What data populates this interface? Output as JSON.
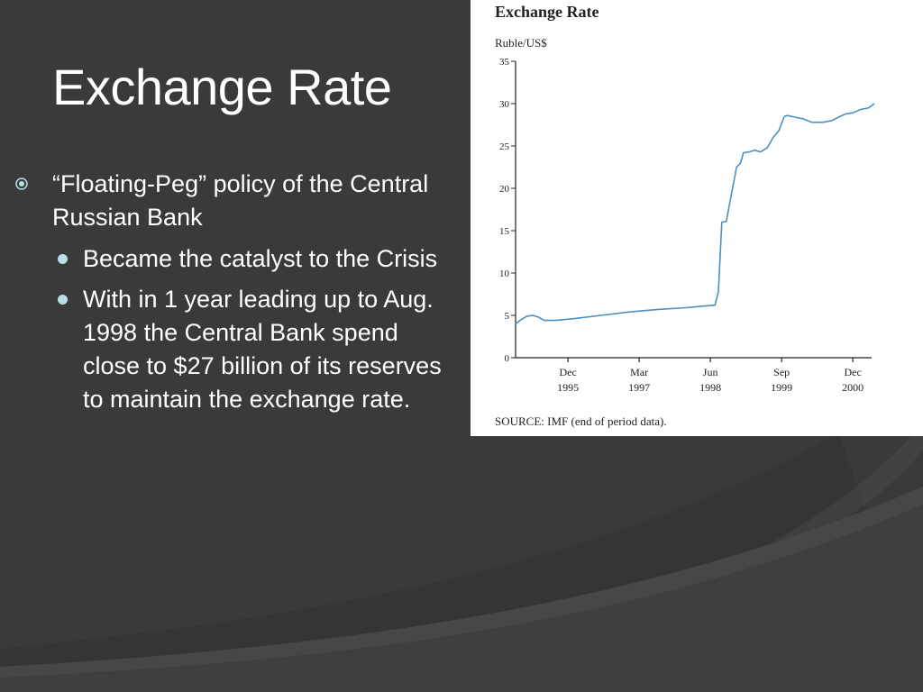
{
  "slide": {
    "title": "Exchange Rate",
    "bullets": [
      {
        "text": "“Floating-Peg” policy of the Central Russian Bank",
        "sub": [
          "Became the catalyst to the Crisis",
          "With in 1 year leading up to Aug. 1998 the Central Bank spend close to $27 billion of its reserves to maintain the exchange rate."
        ]
      }
    ]
  },
  "colors": {
    "background": "#3a3a3a",
    "accent": "#b6dfe6",
    "line": "#4a90c4"
  },
  "chart_data": {
    "type": "line",
    "title": "Exchange Rate",
    "ylabel": "Ruble/US$",
    "source": "SOURCE: IMF (end of period data).",
    "ylim": [
      0,
      35
    ],
    "yticks": [
      0,
      5,
      10,
      15,
      20,
      25,
      30,
      35
    ],
    "xlim": [
      1995.0,
      2001.25
    ],
    "xticks": [
      {
        "month": "Dec",
        "year": "1995",
        "x": 1995.92
      },
      {
        "month": "Mar",
        "year": "1997",
        "x": 1997.17
      },
      {
        "month": "Jun",
        "year": "1998",
        "x": 1998.42
      },
      {
        "month": "Sep",
        "year": "1999",
        "x": 1999.67
      },
      {
        "month": "Dec",
        "year": "2000",
        "x": 2000.92
      }
    ],
    "grid": false,
    "series": [
      {
        "points": [
          [
            1995.0,
            4.0
          ],
          [
            1995.1,
            4.5
          ],
          [
            1995.2,
            4.9
          ],
          [
            1995.3,
            5.0
          ],
          [
            1995.4,
            4.8
          ],
          [
            1995.5,
            4.4
          ],
          [
            1995.7,
            4.4
          ],
          [
            1996.0,
            4.6
          ],
          [
            1996.5,
            5.0
          ],
          [
            1997.0,
            5.4
          ],
          [
            1997.5,
            5.7
          ],
          [
            1998.0,
            5.9
          ],
          [
            1998.3,
            6.1
          ],
          [
            1998.5,
            6.2
          ],
          [
            1998.56,
            7.8
          ],
          [
            1998.62,
            16.0
          ],
          [
            1998.7,
            16.1
          ],
          [
            1998.78,
            19.0
          ],
          [
            1998.88,
            22.5
          ],
          [
            1998.95,
            23.0
          ],
          [
            1999.0,
            24.2
          ],
          [
            1999.1,
            24.3
          ],
          [
            1999.2,
            24.5
          ],
          [
            1999.3,
            24.3
          ],
          [
            1999.42,
            24.8
          ],
          [
            1999.52,
            26.0
          ],
          [
            1999.62,
            26.8
          ],
          [
            1999.72,
            28.5
          ],
          [
            1999.78,
            28.6
          ],
          [
            1999.9,
            28.4
          ],
          [
            2000.05,
            28.2
          ],
          [
            2000.2,
            27.8
          ],
          [
            2000.4,
            27.8
          ],
          [
            2000.55,
            28.0
          ],
          [
            2000.7,
            28.5
          ],
          [
            2000.8,
            28.8
          ],
          [
            2000.92,
            28.9
          ],
          [
            2001.05,
            29.3
          ],
          [
            2001.2,
            29.5
          ],
          [
            2001.3,
            30.0
          ]
        ]
      }
    ]
  }
}
